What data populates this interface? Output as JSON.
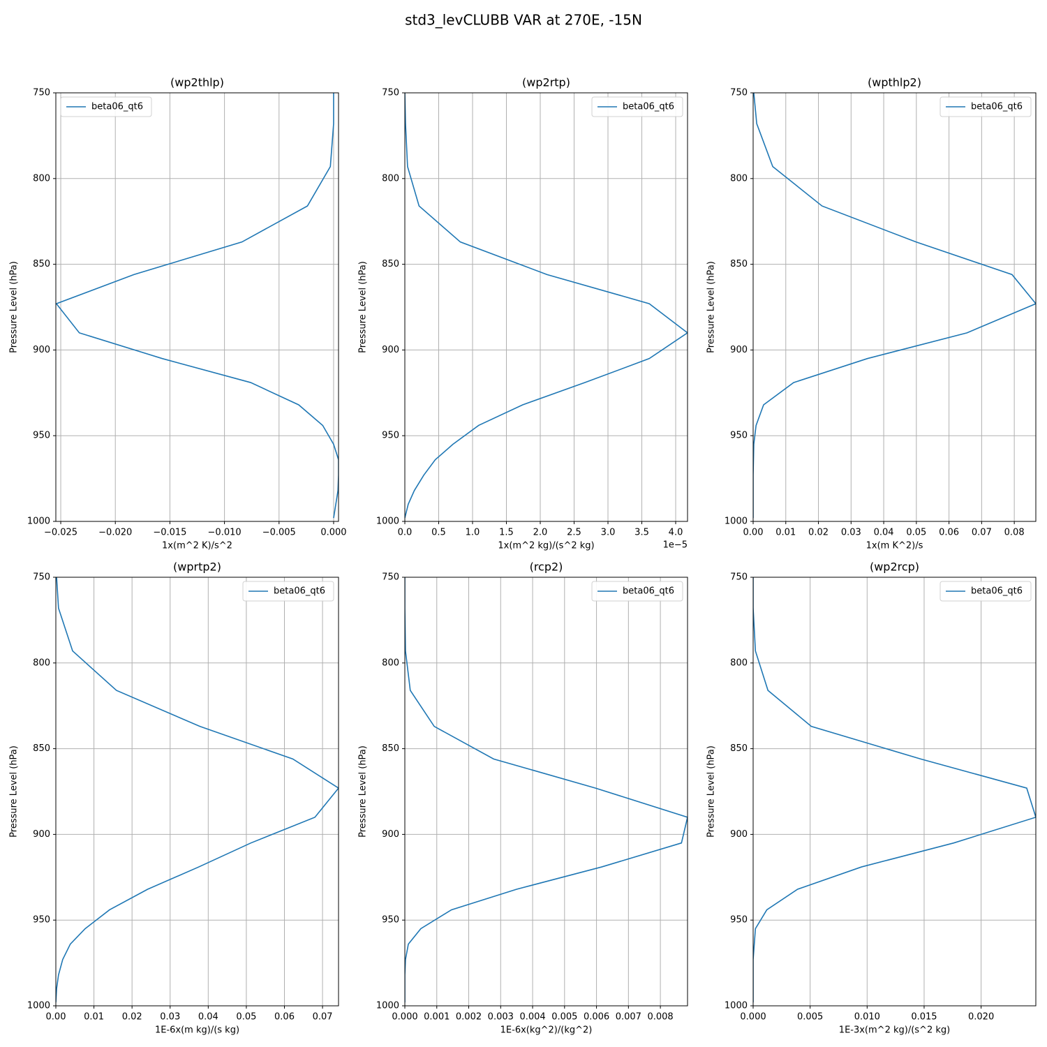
{
  "suptitle": "std3_levCLUBB VAR at 270E, -15N",
  "chart_data": [
    {
      "type": "line",
      "title": "(wp2thlp)",
      "xlabel": "1x(m^2 K)/s^2",
      "ylabel": "Pressure Level (hPa)",
      "y": [
        750,
        768,
        793,
        816,
        837,
        856,
        873,
        890,
        905,
        919,
        932,
        944,
        955,
        964,
        973,
        982,
        990,
        998
      ],
      "series": [
        {
          "name": "beta06_qt6",
          "color": "#1f77b4",
          "values": [
            0.0,
            0.0,
            -0.0003,
            -0.0024,
            -0.0084,
            -0.0183,
            -0.0254,
            -0.0233,
            -0.0157,
            -0.0076,
            -0.0032,
            -0.001,
            0.0,
            0.00045,
            0.00045,
            0.0004,
            0.0002,
            0.0
          ]
        }
      ],
      "xlim": [
        -0.02545,
        0.00045
      ],
      "xticks": [
        {
          "value": -0.025,
          "label": "−0.025"
        },
        {
          "value": -0.02,
          "label": "−0.020"
        },
        {
          "value": -0.015,
          "label": "−0.015"
        },
        {
          "value": -0.01,
          "label": "−0.010"
        },
        {
          "value": -0.005,
          "label": "−0.005"
        },
        {
          "value": 0,
          "label": "0.000"
        }
      ],
      "ylim": [
        1000,
        750
      ],
      "yticks": [
        750,
        800,
        850,
        900,
        950,
        1000
      ],
      "grid": true,
      "legend": "upper-left"
    },
    {
      "type": "line",
      "title": "(wp2rtp)",
      "xlabel": "1x(m^2 kg)/(s^2 kg)",
      "ylabel": "Pressure Level (hPa)",
      "x_offset": "1e−5",
      "y": [
        750,
        768,
        793,
        816,
        837,
        856,
        873,
        890,
        905,
        919,
        932,
        944,
        955,
        964,
        973,
        982,
        990,
        998
      ],
      "series": [
        {
          "name": "beta06_qt6",
          "color": "#1f77b4",
          "values": [
            0.0,
            0.01,
            0.04,
            0.21,
            0.82,
            2.1,
            3.61,
            4.175,
            3.61,
            2.66,
            1.74,
            1.09,
            0.71,
            0.45,
            0.28,
            0.14,
            0.05,
            0.0
          ]
        }
      ],
      "xlim": [
        0,
        4.175
      ],
      "xticks": [
        {
          "value": 0,
          "label": "0.0"
        },
        0.5,
        {
          "value": 1,
          "label": "1.0"
        },
        1.5,
        {
          "value": 2,
          "label": "2.0"
        },
        2.5,
        {
          "value": 3,
          "label": "3.0"
        },
        3.5,
        {
          "value": 4,
          "label": "4.0"
        }
      ],
      "ylim": [
        1000,
        750
      ],
      "yticks": [
        750,
        800,
        850,
        900,
        950,
        1000
      ],
      "grid": true,
      "legend": "upper-right"
    },
    {
      "type": "line",
      "title": "(wpthlp2)",
      "xlabel": "1x(m K^2)/s",
      "ylabel": "Pressure Level (hPa)",
      "y": [
        750,
        768,
        793,
        816,
        837,
        856,
        873,
        890,
        905,
        919,
        932,
        944,
        955,
        964,
        973,
        982,
        990,
        998
      ],
      "series": [
        {
          "name": "beta06_qt6",
          "color": "#1f77b4",
          "values": [
            0.0002,
            0.0011,
            0.006,
            0.0211,
            0.0499,
            0.0793,
            0.0866,
            0.0655,
            0.035,
            0.0124,
            0.0032,
            0.0009,
            0.0002,
            0.0001,
            0.0,
            0.0,
            0.0,
            0.0
          ]
        }
      ],
      "xlim": [
        0,
        0.0866
      ],
      "xticks": [
        {
          "value": 0,
          "label": "0.00"
        },
        0.01,
        0.02,
        0.03,
        0.04,
        0.05,
        0.06,
        0.07,
        0.08
      ],
      "ylim": [
        1000,
        750
      ],
      "yticks": [
        750,
        800,
        850,
        900,
        950,
        1000
      ],
      "grid": true,
      "legend": "upper-right"
    },
    {
      "type": "line",
      "title": "(wprtp2)",
      "xlabel": "1E-6x(m kg)/(s kg)",
      "ylabel": "Pressure Level (hPa)",
      "y": [
        750,
        768,
        793,
        816,
        837,
        856,
        873,
        890,
        905,
        919,
        932,
        944,
        955,
        964,
        973,
        982,
        990,
        998
      ],
      "series": [
        {
          "name": "beta06_qt6",
          "color": "#1f77b4",
          "values": [
            0.0002,
            0.0007,
            0.0044,
            0.0159,
            0.0378,
            0.0622,
            0.0742,
            0.068,
            0.0512,
            0.0375,
            0.0241,
            0.0141,
            0.0077,
            0.0038,
            0.0018,
            0.0007,
            0.0002,
            0.0
          ]
        }
      ],
      "xlim": [
        0,
        0.0742
      ],
      "xticks": [
        {
          "value": 0,
          "label": "0.00"
        },
        0.01,
        0.02,
        0.03,
        0.04,
        0.05,
        0.06,
        0.07
      ],
      "ylim": [
        1000,
        750
      ],
      "yticks": [
        750,
        800,
        850,
        900,
        950,
        1000
      ],
      "grid": true,
      "legend": "upper-right"
    },
    {
      "type": "line",
      "title": "(rcp2)",
      "xlabel": "1E-6x(kg^2)/(kg^2)",
      "ylabel": "Pressure Level (hPa)",
      "y": [
        750,
        768,
        793,
        816,
        837,
        856,
        873,
        890,
        905,
        919,
        932,
        944,
        955,
        964,
        973,
        982,
        990,
        998
      ],
      "series": [
        {
          "name": "beta06_qt6",
          "color": "#1f77b4",
          "values": [
            0.0,
            0.0,
            2e-05,
            0.00017,
            0.00092,
            0.00278,
            0.00597,
            0.00885,
            0.00866,
            0.00616,
            0.0035,
            0.00146,
            0.0005,
            0.00011,
            2e-05,
            0.0,
            0.0,
            0.0
          ]
        }
      ],
      "xlim": [
        0,
        0.00885
      ],
      "xticks": [
        {
          "value": 0,
          "label": "0.000"
        },
        0.001,
        0.002,
        0.003,
        0.004,
        0.005,
        0.006,
        0.007,
        0.008
      ],
      "ylim": [
        1000,
        750
      ],
      "yticks": [
        750,
        800,
        850,
        900,
        950,
        1000
      ],
      "grid": true,
      "legend": "upper-right"
    },
    {
      "type": "line",
      "title": "(wp2rcp)",
      "xlabel": "1E-3x(m^2 kg)/(s^2 kg)",
      "ylabel": "Pressure Level (hPa)",
      "y": [
        750,
        768,
        793,
        816,
        837,
        856,
        873,
        890,
        905,
        919,
        932,
        944,
        955,
        964,
        973,
        982,
        990,
        998
      ],
      "series": [
        {
          "name": "beta06_qt6",
          "color": "#1f77b4",
          "values": [
            0.0,
            0.0,
            0.0002,
            0.0013,
            0.0051,
            0.0147,
            0.024,
            0.0248,
            0.0176,
            0.0095,
            0.0039,
            0.0012,
            0.0002,
            0.0001,
            0.0,
            0.0,
            0.0,
            0.0
          ]
        }
      ],
      "xlim": [
        0,
        0.0248
      ],
      "xticks": [
        {
          "value": 0,
          "label": "0.000"
        },
        0.005,
        {
          "value": 0.01,
          "label": "0.010"
        },
        0.015,
        {
          "value": 0.02,
          "label": "0.020"
        }
      ],
      "ylim": [
        1000,
        750
      ],
      "yticks": [
        750,
        800,
        850,
        900,
        950,
        1000
      ],
      "grid": true,
      "legend": "upper-right"
    }
  ]
}
